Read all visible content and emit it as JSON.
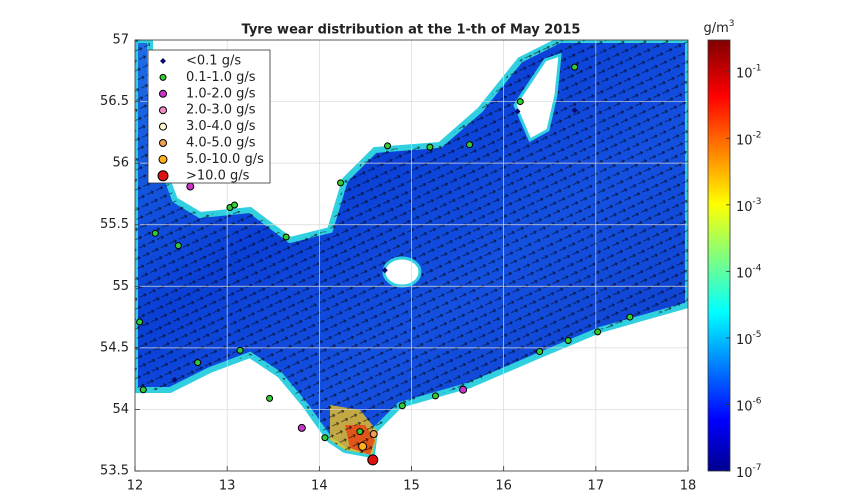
{
  "map": {
    "title": "Tyre wear distribution at the 1-th of May 2015",
    "xlim": [
      12,
      18
    ],
    "ylim": [
      53.5,
      57
    ],
    "xticks": [
      12,
      13,
      14,
      15,
      16,
      17,
      18
    ],
    "yticks": [
      53.5,
      54,
      54.5,
      55,
      55.5,
      56,
      56.5,
      57
    ],
    "grid": true,
    "legend": [
      {
        "label": "<0.1 g/s",
        "color": "#0a0a6e"
      },
      {
        "label": "0.1-1.0 g/s",
        "color": "#33cc33"
      },
      {
        "label": "1.0-2.0 g/s",
        "color": "#cc33cc"
      },
      {
        "label": "2.0-3.0 g/s",
        "color": "#f08cc8"
      },
      {
        "label": "3.0-4.0 g/s",
        "color": "#fff8d0"
      },
      {
        "label": "4.0-5.0 g/s",
        "color": "#f5a050"
      },
      {
        "label": "5.0-10.0 g/s",
        "color": "#ffb020"
      },
      {
        "label": ">10.0 g/s",
        "color": "#e01010"
      }
    ],
    "sites": [
      {
        "lon": 12.22,
        "lat": 55.43,
        "class": 1
      },
      {
        "lon": 12.47,
        "lat": 55.33,
        "class": 1
      },
      {
        "lon": 13.03,
        "lat": 55.64,
        "class": 1
      },
      {
        "lon": 13.08,
        "lat": 55.66,
        "class": 1
      },
      {
        "lon": 13.64,
        "lat": 55.4,
        "class": 1
      },
      {
        "lon": 14.23,
        "lat": 55.84,
        "class": 1
      },
      {
        "lon": 14.74,
        "lat": 56.14,
        "class": 1
      },
      {
        "lon": 15.2,
        "lat": 56.13,
        "class": 1
      },
      {
        "lon": 15.63,
        "lat": 56.15,
        "class": 1
      },
      {
        "lon": 16.18,
        "lat": 56.5,
        "class": 1
      },
      {
        "lon": 16.77,
        "lat": 56.78,
        "class": 1
      },
      {
        "lon": 17.02,
        "lat": 54.63,
        "class": 1
      },
      {
        "lon": 17.37,
        "lat": 54.75,
        "class": 1
      },
      {
        "lon": 16.7,
        "lat": 54.56,
        "class": 1
      },
      {
        "lon": 16.39,
        "lat": 54.47,
        "class": 1
      },
      {
        "lon": 15.26,
        "lat": 54.11,
        "class": 1
      },
      {
        "lon": 14.9,
        "lat": 54.03,
        "class": 1
      },
      {
        "lon": 14.44,
        "lat": 53.82,
        "class": 1
      },
      {
        "lon": 14.06,
        "lat": 53.77,
        "class": 1
      },
      {
        "lon": 13.46,
        "lat": 54.09,
        "class": 1
      },
      {
        "lon": 13.14,
        "lat": 54.48,
        "class": 1
      },
      {
        "lon": 12.68,
        "lat": 54.38,
        "class": 1
      },
      {
        "lon": 12.09,
        "lat": 54.16,
        "class": 1
      },
      {
        "lon": 12.05,
        "lat": 54.71,
        "class": 1
      },
      {
        "lon": 14.71,
        "lat": 55.13,
        "class": 0
      },
      {
        "lon": 12.43,
        "lat": 54.24,
        "class": 0
      },
      {
        "lon": 16.15,
        "lat": 56.42,
        "class": 0
      },
      {
        "lon": 16.77,
        "lat": 56.43,
        "class": 0
      },
      {
        "lon": 12.6,
        "lat": 55.81,
        "class": 2
      },
      {
        "lon": 15.56,
        "lat": 54.16,
        "class": 2
      },
      {
        "lon": 13.81,
        "lat": 53.85,
        "class": 2
      },
      {
        "lon": 14.59,
        "lat": 53.8,
        "class": 5
      },
      {
        "lon": 14.47,
        "lat": 53.7,
        "class": 6
      },
      {
        "lon": 14.58,
        "lat": 53.59,
        "class": 7
      }
    ],
    "colorbar": {
      "unit": "g/m",
      "unit_exponent": "3",
      "clim": [
        1e-07,
        0.3
      ],
      "ticks": [
        {
          "value": 1e-07,
          "label": "10",
          "exponent": "-7"
        },
        {
          "value": 1e-06,
          "label": "10",
          "exponent": "-6"
        },
        {
          "value": 1e-05,
          "label": "10",
          "exponent": "-5"
        },
        {
          "value": 0.0001,
          "label": "10",
          "exponent": "-4"
        },
        {
          "value": 0.001,
          "label": "10",
          "exponent": "-3"
        },
        {
          "value": 0.01,
          "label": "10",
          "exponent": "-2"
        },
        {
          "value": 0.1,
          "label": "10",
          "exponent": "-1"
        }
      ]
    }
  }
}
